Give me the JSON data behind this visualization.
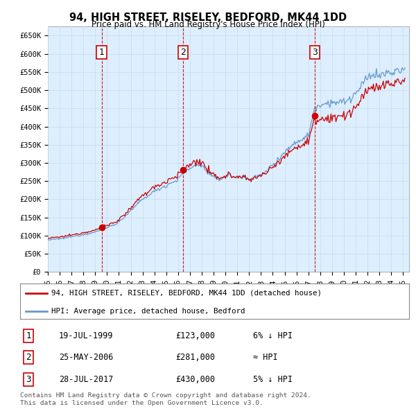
{
  "title": "94, HIGH STREET, RISELEY, BEDFORD, MK44 1DD",
  "subtitle": "Price paid vs. HM Land Registry's House Price Index (HPI)",
  "ylabel_ticks": [
    "£0",
    "£50K",
    "£100K",
    "£150K",
    "£200K",
    "£250K",
    "£300K",
    "£350K",
    "£400K",
    "£450K",
    "£500K",
    "£550K",
    "£600K",
    "£650K"
  ],
  "ytick_values": [
    0,
    50000,
    100000,
    150000,
    200000,
    250000,
    300000,
    350000,
    400000,
    450000,
    500000,
    550000,
    600000,
    650000
  ],
  "ylim": [
    0,
    675000
  ],
  "xlim_start": 1995.0,
  "xlim_end": 2025.5,
  "x_tick_years": [
    1995,
    1996,
    1997,
    1998,
    1999,
    2000,
    2001,
    2002,
    2003,
    2004,
    2005,
    2006,
    2007,
    2008,
    2009,
    2010,
    2011,
    2012,
    2013,
    2014,
    2015,
    2016,
    2017,
    2018,
    2019,
    2020,
    2021,
    2022,
    2023,
    2024,
    2025
  ],
  "x_tick_labels": [
    "95",
    "96",
    "97",
    "98",
    "99",
    "00",
    "01",
    "02",
    "03",
    "04",
    "05",
    "06",
    "07",
    "08",
    "09",
    "10",
    "11",
    "12",
    "13",
    "14",
    "15",
    "16",
    "17",
    "18",
    "19",
    "20",
    "21",
    "22",
    "23",
    "24",
    "25"
  ],
  "sale_color": "#cc0000",
  "hpi_color": "#6699cc",
  "hpi_fill_color": "#ddeeff",
  "legend_sale_label": "94, HIGH STREET, RISELEY, BEDFORD, MK44 1DD (detached house)",
  "legend_hpi_label": "HPI: Average price, detached house, Bedford",
  "sales": [
    {
      "num": 1,
      "date_str": "19-JUL-1999",
      "year": 1999.54,
      "price": 123000,
      "note": "6% ↓ HPI"
    },
    {
      "num": 2,
      "date_str": "25-MAY-2006",
      "year": 2006.4,
      "price": 281000,
      "note": "≈ HPI"
    },
    {
      "num": 3,
      "date_str": "28-JUL-2017",
      "year": 2017.57,
      "price": 430000,
      "note": "5% ↓ HPI"
    }
  ],
  "footer": "Contains HM Land Registry data © Crown copyright and database right 2024.\nThis data is licensed under the Open Government Licence v3.0.",
  "background_color": "#ffffff",
  "grid_color": "#ccddee",
  "dashed_vline_color": "#cc0000"
}
